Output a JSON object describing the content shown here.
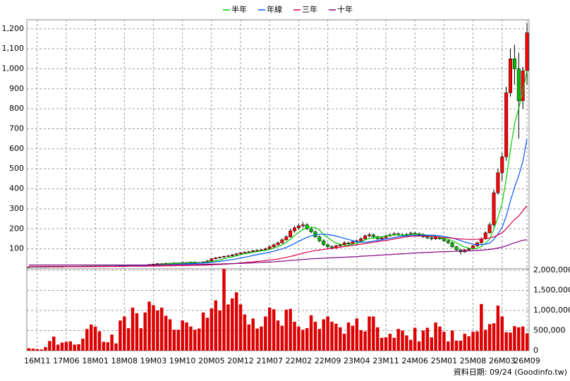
{
  "chart_data": {
    "type": "candlestick",
    "footnote": "資料日期: 09/24 (Goodinfo.tw)",
    "up_color": "#ff0000",
    "down_color": "#00bb00",
    "categories": [
      null,
      null,
      "16M11",
      null,
      null,
      null,
      null,
      null,
      null,
      "17M06",
      null,
      null,
      null,
      null,
      null,
      null,
      "18M01",
      null,
      null,
      null,
      null,
      null,
      null,
      "18M08",
      null,
      null,
      null,
      null,
      null,
      null,
      "19M03",
      null,
      null,
      null,
      null,
      null,
      null,
      "19M10",
      null,
      null,
      null,
      null,
      null,
      null,
      "20M05",
      null,
      null,
      null,
      null,
      null,
      null,
      "20M12",
      null,
      null,
      null,
      null,
      null,
      null,
      "21M07",
      null,
      null,
      null,
      null,
      null,
      null,
      "22M02",
      null,
      null,
      null,
      null,
      null,
      null,
      "22M09",
      null,
      null,
      null,
      null,
      null,
      null,
      "23M04",
      null,
      null,
      null,
      null,
      null,
      null,
      "23M11",
      null,
      null,
      null,
      null,
      null,
      null,
      "24M06",
      null,
      null,
      null,
      null,
      null,
      null,
      "25M01",
      null,
      null,
      null,
      null,
      null,
      null,
      "25M08",
      null,
      null,
      null,
      null,
      null,
      null,
      "26M03",
      null,
      null,
      null,
      null,
      null,
      "26M09"
    ],
    "open": [
      10,
      10,
      11,
      10,
      11,
      11,
      12,
      11,
      12,
      12,
      13,
      12,
      13,
      12,
      13,
      14,
      13,
      14,
      13,
      14,
      15,
      14,
      15,
      16,
      15,
      16,
      17,
      16,
      18,
      20,
      22,
      24,
      26,
      25,
      28,
      27,
      30,
      28,
      32,
      30,
      34,
      32,
      28,
      35,
      40,
      50,
      55,
      58,
      62,
      65,
      70,
      75,
      80,
      82,
      85,
      90,
      92,
      95,
      100,
      110,
      120,
      130,
      145,
      160,
      190,
      205,
      215,
      220,
      200,
      185,
      160,
      140,
      120,
      110,
      105,
      115,
      120,
      130,
      125,
      135,
      140,
      150,
      165,
      170,
      160,
      150,
      155,
      165,
      170,
      175,
      170,
      168,
      172,
      178,
      175,
      170,
      160,
      155,
      150,
      158,
      150,
      140,
      130,
      110,
      95,
      85,
      95,
      100,
      115,
      130,
      150,
      180,
      220,
      380,
      480,
      560,
      880,
      1050,
      1000,
      840,
      990
    ],
    "high": [
      11,
      12,
      12,
      12,
      12,
      13,
      13,
      13,
      13,
      14,
      14,
      14,
      14,
      14,
      15,
      15,
      15,
      15,
      15,
      16,
      16,
      16,
      17,
      17,
      17,
      18,
      18,
      19,
      21,
      23,
      25,
      28,
      28,
      29,
      30,
      31,
      31,
      33,
      34,
      35,
      36,
      34,
      37,
      43,
      53,
      58,
      62,
      66,
      69,
      74,
      79,
      84,
      87,
      90,
      95,
      97,
      100,
      106,
      116,
      126,
      137,
      152,
      168,
      200,
      215,
      225,
      235,
      228,
      210,
      192,
      168,
      148,
      128,
      118,
      120,
      126,
      138,
      136,
      142,
      148,
      158,
      172,
      180,
      176,
      166,
      162,
      172,
      178,
      184,
      182,
      178,
      180,
      186,
      186,
      182,
      178,
      170,
      162,
      166,
      162,
      156,
      145,
      135,
      115,
      100,
      98,
      105,
      120,
      136,
      158,
      188,
      232,
      395,
      500,
      580,
      910,
      1100,
      1120,
      1080,
      1010,
      1230
    ],
    "low": [
      9,
      9,
      9,
      9,
      10,
      10,
      10,
      10,
      11,
      11,
      11,
      11,
      11,
      11,
      12,
      12,
      12,
      12,
      12,
      13,
      13,
      13,
      14,
      14,
      14,
      15,
      15,
      15,
      17,
      19,
      21,
      23,
      23,
      24,
      25,
      26,
      26,
      27,
      29,
      29,
      30,
      26,
      27,
      33,
      38,
      47,
      52,
      55,
      60,
      62,
      67,
      72,
      77,
      79,
      82,
      86,
      88,
      91,
      96,
      106,
      116,
      126,
      140,
      155,
      180,
      195,
      205,
      195,
      178,
      155,
      132,
      115,
      102,
      98,
      100,
      110,
      115,
      120,
      120,
      128,
      135,
      145,
      158,
      155,
      145,
      145,
      150,
      160,
      165,
      165,
      162,
      162,
      165,
      170,
      165,
      155,
      148,
      142,
      145,
      145,
      135,
      125,
      105,
      88,
      72,
      80,
      90,
      96,
      110,
      125,
      145,
      175,
      210,
      370,
      440,
      540,
      860,
      920,
      650,
      800,
      920
    ],
    "close": [
      10,
      11,
      10,
      11,
      11,
      12,
      11,
      12,
      12,
      13,
      12,
      13,
      12,
      13,
      14,
      13,
      14,
      13,
      14,
      15,
      14,
      15,
      16,
      15,
      16,
      17,
      16,
      18,
      20,
      22,
      24,
      26,
      25,
      28,
      27,
      30,
      28,
      32,
      30,
      34,
      32,
      28,
      35,
      40,
      50,
      55,
      58,
      62,
      65,
      70,
      75,
      80,
      82,
      85,
      90,
      92,
      95,
      100,
      110,
      120,
      130,
      145,
      160,
      190,
      205,
      215,
      220,
      200,
      185,
      160,
      140,
      120,
      110,
      105,
      115,
      120,
      130,
      125,
      135,
      140,
      150,
      165,
      170,
      160,
      150,
      155,
      165,
      170,
      175,
      170,
      168,
      172,
      178,
      175,
      170,
      160,
      155,
      150,
      158,
      150,
      140,
      130,
      110,
      95,
      85,
      95,
      100,
      115,
      130,
      150,
      180,
      220,
      380,
      480,
      560,
      880,
      1050,
      1000,
      840,
      990,
      1180
    ],
    "series": [
      {
        "name": "半年",
        "color": "#00cc00",
        "values": [
          10,
          10,
          10,
          11,
          11,
          11,
          11,
          11,
          12,
          12,
          12,
          12,
          12,
          13,
          13,
          13,
          13,
          13,
          13,
          14,
          14,
          14,
          15,
          15,
          15,
          16,
          16,
          16,
          17,
          18,
          19,
          21,
          23,
          24,
          26,
          27,
          28,
          28,
          29,
          30,
          31,
          30,
          31,
          34,
          37,
          40,
          44,
          50,
          55,
          60,
          65,
          70,
          75,
          79,
          82,
          86,
          90,
          92,
          97,
          104,
          111,
          120,
          132,
          148,
          166,
          182,
          197,
          206,
          208,
          205,
          193,
          171,
          156,
          141,
          128,
          123,
          117,
          118,
          124,
          127,
          133,
          145,
          153,
          153,
          158,
          160,
          164,
          168,
          170,
          169,
          168,
          170,
          173,
          174,
          173,
          171,
          168,
          164,
          161,
          157,
          152,
          147,
          140,
          131,
          118,
          109,
          103,
          100,
          103,
          112,
          128,
          149,
          196,
          257,
          328,
          450,
          595,
          725,
          802,
          887,
          990
        ]
      },
      {
        "name": "年線",
        "color": "#0055ff",
        "values": [
          10,
          10,
          10,
          10,
          10,
          11,
          11,
          11,
          11,
          11,
          11,
          12,
          12,
          12,
          12,
          12,
          13,
          13,
          13,
          13,
          13,
          14,
          14,
          14,
          14,
          15,
          15,
          15,
          16,
          16,
          17,
          18,
          19,
          20,
          21,
          22,
          23,
          24,
          25,
          26,
          27,
          28,
          29,
          30,
          32,
          35,
          37,
          40,
          43,
          46,
          50,
          54,
          58,
          62,
          67,
          71,
          75,
          79,
          83,
          88,
          94,
          100,
          107,
          116,
          126,
          137,
          148,
          157,
          165,
          170,
          173,
          173,
          171,
          168,
          164,
          158,
          152,
          147,
          141,
          136,
          133,
          133,
          135,
          138,
          141,
          145,
          149,
          152,
          156,
          160,
          163,
          165,
          167,
          168,
          168,
          168,
          168,
          168,
          167,
          165,
          162,
          158,
          154,
          148,
          141,
          134,
          128,
          124,
          121,
          121,
          123,
          128,
          147,
          174,
          207,
          264,
          339,
          408,
          465,
          537,
          650
        ]
      },
      {
        "name": "三年",
        "color": "#dd0044",
        "values": [
          11,
          11,
          11,
          11,
          11,
          11,
          11,
          11,
          11,
          11,
          11,
          11,
          11,
          11,
          11,
          11,
          12,
          12,
          12,
          12,
          12,
          12,
          12,
          12,
          13,
          13,
          13,
          13,
          13,
          14,
          14,
          14,
          14,
          15,
          15,
          15,
          16,
          16,
          16,
          17,
          17,
          18,
          18,
          19,
          20,
          21,
          22,
          23,
          24,
          26,
          27,
          29,
          31,
          33,
          35,
          37,
          39,
          41,
          44,
          46,
          49,
          53,
          57,
          62,
          67,
          72,
          78,
          83,
          87,
          91,
          94,
          97,
          100,
          102,
          105,
          108,
          111,
          114,
          117,
          120,
          123,
          126,
          130,
          133,
          136,
          139,
          142,
          145,
          149,
          153,
          157,
          160,
          162,
          163,
          164,
          164,
          163,
          162,
          160,
          158,
          156,
          155,
          153,
          151,
          149,
          148,
          147,
          147,
          148,
          149,
          151,
          154,
          160,
          169,
          180,
          200,
          224,
          246,
          264,
          290,
          315
        ]
      },
      {
        "name": "十年",
        "color": "#800080",
        "values": [
          19,
          19,
          19,
          19,
          19,
          19,
          19,
          19,
          19,
          19,
          19,
          19,
          19,
          19,
          19,
          19,
          19,
          19,
          19,
          19,
          19,
          19,
          19,
          19,
          19,
          19,
          19,
          19,
          19,
          19,
          19,
          20,
          20,
          20,
          20,
          20,
          21,
          21,
          21,
          21,
          22,
          22,
          22,
          23,
          23,
          24,
          24,
          25,
          25,
          26,
          27,
          27,
          28,
          29,
          30,
          31,
          32,
          33,
          34,
          35,
          37,
          38,
          40,
          42,
          43,
          45,
          47,
          48,
          50,
          51,
          52,
          53,
          54,
          55,
          56,
          57,
          58,
          59,
          60,
          61,
          63,
          64,
          65,
          66,
          68,
          69,
          70,
          71,
          73,
          74,
          75,
          76,
          78,
          79,
          80,
          81,
          82,
          83,
          84,
          85,
          86,
          86,
          87,
          88,
          88,
          89,
          90,
          91,
          92,
          93,
          95,
          97,
          100,
          104,
          108,
          115,
          123,
          130,
          136,
          143,
          145
        ]
      }
    ],
    "ylim": [
      0,
      1245
    ],
    "yticks": [
      100,
      200,
      300,
      400,
      500,
      600,
      700,
      800,
      900,
      {
        "value": 1000,
        "label": "1,000"
      },
      {
        "value": 1100,
        "label": "1,100"
      },
      {
        "value": 1200,
        "label": "1,200"
      }
    ],
    "grid": true,
    "volume": {
      "type": "bar",
      "color": "#dd0000",
      "values": [
        60000,
        50000,
        40000,
        30000,
        90000,
        240000,
        350000,
        150000,
        200000,
        220000,
        230000,
        150000,
        160000,
        300000,
        540000,
        650000,
        600000,
        480000,
        220000,
        210000,
        400000,
        180000,
        750000,
        850000,
        560000,
        1070000,
        930000,
        560000,
        950000,
        1220000,
        1130000,
        1000000,
        1070000,
        870000,
        780000,
        520000,
        520000,
        750000,
        700000,
        600000,
        520000,
        550000,
        950000,
        820000,
        1050000,
        1250000,
        1000000,
        2030000,
        1150000,
        1300000,
        1450000,
        1150000,
        900000,
        650000,
        800000,
        550000,
        600000,
        850000,
        1070000,
        1030000,
        750000,
        620000,
        1020000,
        1040000,
        720000,
        600000,
        520000,
        560000,
        880000,
        720000,
        540000,
        780000,
        850000,
        720000,
        670000,
        580000,
        420000,
        700000,
        620000,
        800000,
        510000,
        480000,
        850000,
        850000,
        580000,
        320000,
        330000,
        420000,
        320000,
        540000,
        500000,
        380000,
        270000,
        570000,
        230000,
        500000,
        570000,
        330000,
        700000,
        600000,
        470000,
        230000,
        500000,
        250000,
        250000,
        420000,
        360000,
        470000,
        480000,
        1160000,
        520000,
        660000,
        680000,
        1120000,
        850000,
        460000,
        450000,
        610000,
        580000,
        600000,
        430000
      ],
      "ylim": [
        0,
        2035000
      ],
      "yticks": [
        0,
        {
          "value": 500000,
          "label": "500,000"
        },
        {
          "value": 1000000,
          "label": "1,000,000"
        },
        {
          "value": 1500000,
          "label": "1,500,000"
        },
        {
          "value": 2000000,
          "label": "2,000,000"
        }
      ]
    }
  }
}
